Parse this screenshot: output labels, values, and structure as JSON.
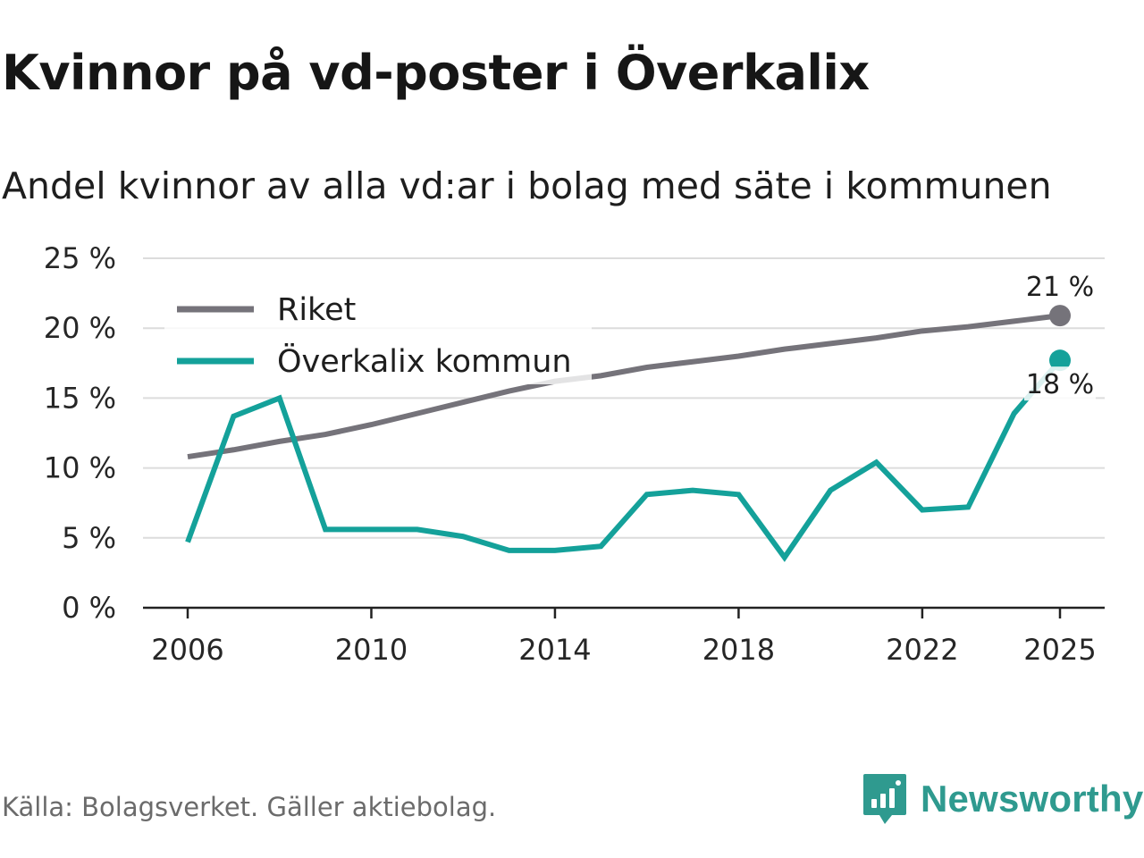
{
  "title": "Kvinnor på vd-poster i Överkalix",
  "subtitle": "Andel kvinnor av alla vd:ar i bolag med säte i kommunen",
  "source": "Källa: Bolagsverket. Gäller aktiebolag.",
  "brand": {
    "name": "Newsworthy",
    "icon": "newsworthy-logo-icon",
    "color": "#2f9a8f"
  },
  "chart_data": {
    "type": "line",
    "title": "Kvinnor på vd-poster i Överkalix",
    "subtitle": "Andel kvinnor av alla vd:ar i bolag med säte i kommunen",
    "xlabel": "",
    "ylabel": "",
    "x": [
      2006,
      2007,
      2008,
      2009,
      2010,
      2011,
      2012,
      2013,
      2014,
      2015,
      2016,
      2017,
      2018,
      2019,
      2020,
      2021,
      2022,
      2023,
      2024,
      2025
    ],
    "xticks": [
      2006,
      2010,
      2014,
      2018,
      2022,
      2025
    ],
    "xtick_labels": [
      "2006",
      "2010",
      "2014",
      "2018",
      "2022",
      "2025"
    ],
    "yticks": [
      0,
      5,
      10,
      15,
      20,
      25
    ],
    "ytick_labels": [
      "0 %",
      "5 %",
      "10 %",
      "15 %",
      "20 %",
      "25 %"
    ],
    "ylim": [
      0,
      25
    ],
    "grid": true,
    "legend_position": "top-left",
    "series": [
      {
        "name": "Riket",
        "color": "#75737a",
        "values": [
          10.8,
          11.3,
          11.9,
          12.4,
          13.1,
          13.9,
          14.7,
          15.5,
          16.2,
          16.6,
          17.2,
          17.6,
          18.0,
          18.5,
          18.9,
          19.3,
          19.8,
          20.1,
          20.5,
          20.9
        ],
        "end_label": "21 %"
      },
      {
        "name": "Överkalix kommun",
        "color": "#14a19a",
        "values": [
          4.7,
          13.7,
          15.0,
          5.6,
          5.6,
          5.6,
          5.1,
          4.1,
          4.1,
          4.4,
          8.1,
          8.4,
          8.1,
          3.6,
          8.4,
          10.4,
          7.0,
          7.2,
          13.9,
          17.7
        ],
        "end_label": "18 %"
      }
    ]
  }
}
